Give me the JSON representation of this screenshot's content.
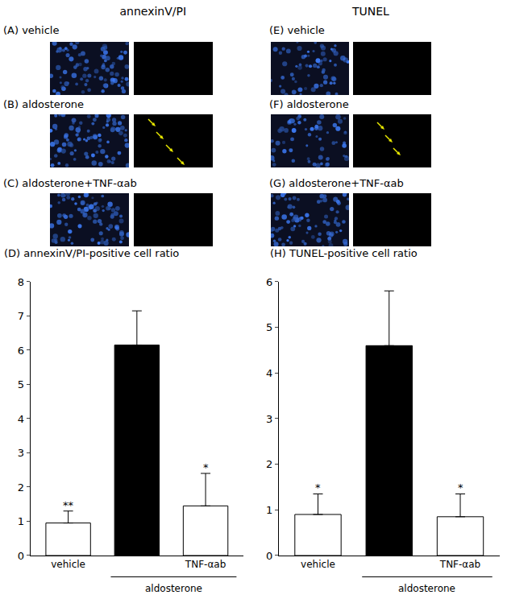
{
  "headers": [
    "annexinV/PI",
    "TUNEL"
  ],
  "panels": [
    {
      "label": "(A) vehicle"
    },
    {
      "label": "(B) aldosterone"
    },
    {
      "label": "(C) aldosterone+TNF-αab"
    },
    {
      "label": "(E) vehicle"
    },
    {
      "label": "(F) aldosterone"
    },
    {
      "label": "(G) aldosterone+TNF-αab"
    }
  ],
  "chart_data": [
    {
      "type": "bar",
      "title": "(D) annexinV/PI-positive cell ratio",
      "categories": [
        "vehicle",
        null,
        "TNF-αab"
      ],
      "values": [
        0.95,
        6.15,
        1.45
      ],
      "errors": [
        0.35,
        1.0,
        0.95
      ],
      "significance": [
        "**",
        null,
        "*"
      ],
      "colors": [
        "#ffffff",
        "#000000",
        "#ffffff"
      ],
      "annotations": [
        "aldosterone"
      ],
      "ylim": [
        0,
        8
      ],
      "yticks": [
        0,
        1,
        2,
        3,
        4,
        5,
        6,
        7,
        8
      ],
      "grid": false
    },
    {
      "type": "bar",
      "title": "(H) TUNEL-positive cell ratio",
      "categories": [
        "vehicle",
        null,
        "TNF-αab"
      ],
      "values": [
        0.9,
        4.6,
        0.85
      ],
      "errors": [
        0.45,
        1.2,
        0.5
      ],
      "significance": [
        "*",
        null,
        "*"
      ],
      "colors": [
        "#ffffff",
        "#000000",
        "#ffffff"
      ],
      "annotations": [
        "aldosterone"
      ],
      "ylim": [
        0,
        6
      ],
      "yticks": [
        0,
        1,
        2,
        3,
        4,
        5,
        6
      ],
      "grid": false
    }
  ]
}
